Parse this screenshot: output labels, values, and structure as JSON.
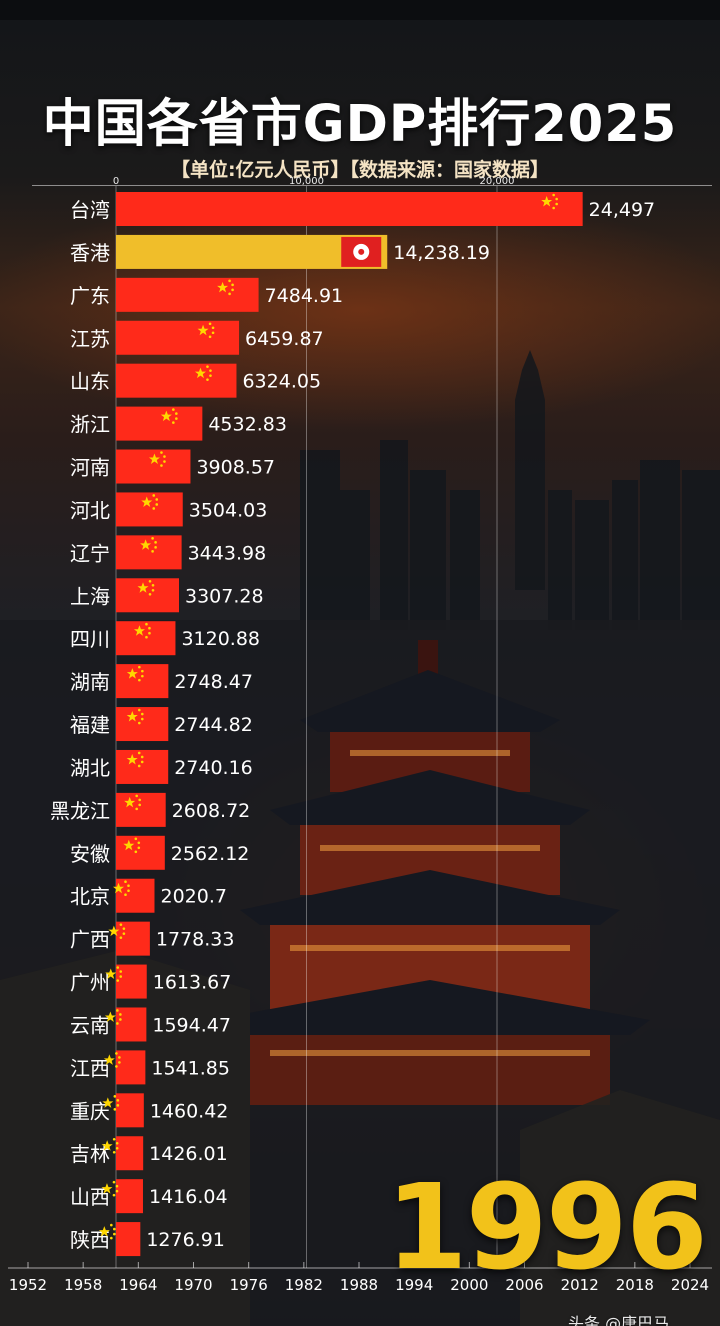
{
  "title": "中国各省市GDP排行2025",
  "subtitle": "【单位:亿元人民币】【数据来源：国家数据】",
  "current_year": "1996",
  "watermark": "头条 @唐巴马",
  "colors": {
    "bar": "#ff2a1a",
    "highlight_bar": "#f0be2a",
    "year_text": "#f2c21a"
  },
  "chart_data": {
    "type": "bar",
    "orientation": "horizontal",
    "x_ticks": [
      "0",
      "10,000",
      "20,000"
    ],
    "xlim": [
      0,
      25500
    ],
    "categories": [
      "台湾",
      "香港",
      "广东",
      "江苏",
      "山东",
      "浙江",
      "河南",
      "河北",
      "辽宁",
      "上海",
      "四川",
      "湖南",
      "福建",
      "湖北",
      "黑龙江",
      "安徽",
      "北京",
      "广西",
      "广州",
      "云南",
      "江西",
      "重庆",
      "吉林",
      "山西",
      "陕西"
    ],
    "values": [
      24497,
      14238.19,
      7484.91,
      6459.87,
      6324.05,
      4532.83,
      3908.57,
      3504.03,
      3443.98,
      3307.28,
      3120.88,
      2748.47,
      2744.82,
      2740.16,
      2608.72,
      2562.12,
      2020.7,
      1778.33,
      1613.67,
      1594.47,
      1541.85,
      1460.42,
      1426.01,
      1416.04,
      1276.91
    ],
    "value_labels": [
      "24,497",
      "14,238.19",
      "7484.91",
      "6459.87",
      "6324.05",
      "4532.83",
      "3908.57",
      "3504.03",
      "3443.98",
      "3307.28",
      "3120.88",
      "2748.47",
      "2744.82",
      "2740.16",
      "2608.72",
      "2562.12",
      "2020.7",
      "1778.33",
      "1613.67",
      "1594.47",
      "1541.85",
      "1460.42",
      "1426.01",
      "1416.04",
      "1276.91"
    ],
    "flags": [
      "cn",
      "hk",
      "cn",
      "cn",
      "cn",
      "cn",
      "cn",
      "cn",
      "cn",
      "cn",
      "cn",
      "cn",
      "cn",
      "cn",
      "cn",
      "cn",
      "cn",
      "cn",
      "cn",
      "cn",
      "cn",
      "cn",
      "cn",
      "cn",
      "cn"
    ],
    "timeline_years": [
      "1952",
      "1958",
      "1964",
      "1970",
      "1976",
      "1982",
      "1988",
      "1994",
      "2000",
      "2006",
      "2012",
      "2018",
      "2024"
    ],
    "grid": true
  }
}
